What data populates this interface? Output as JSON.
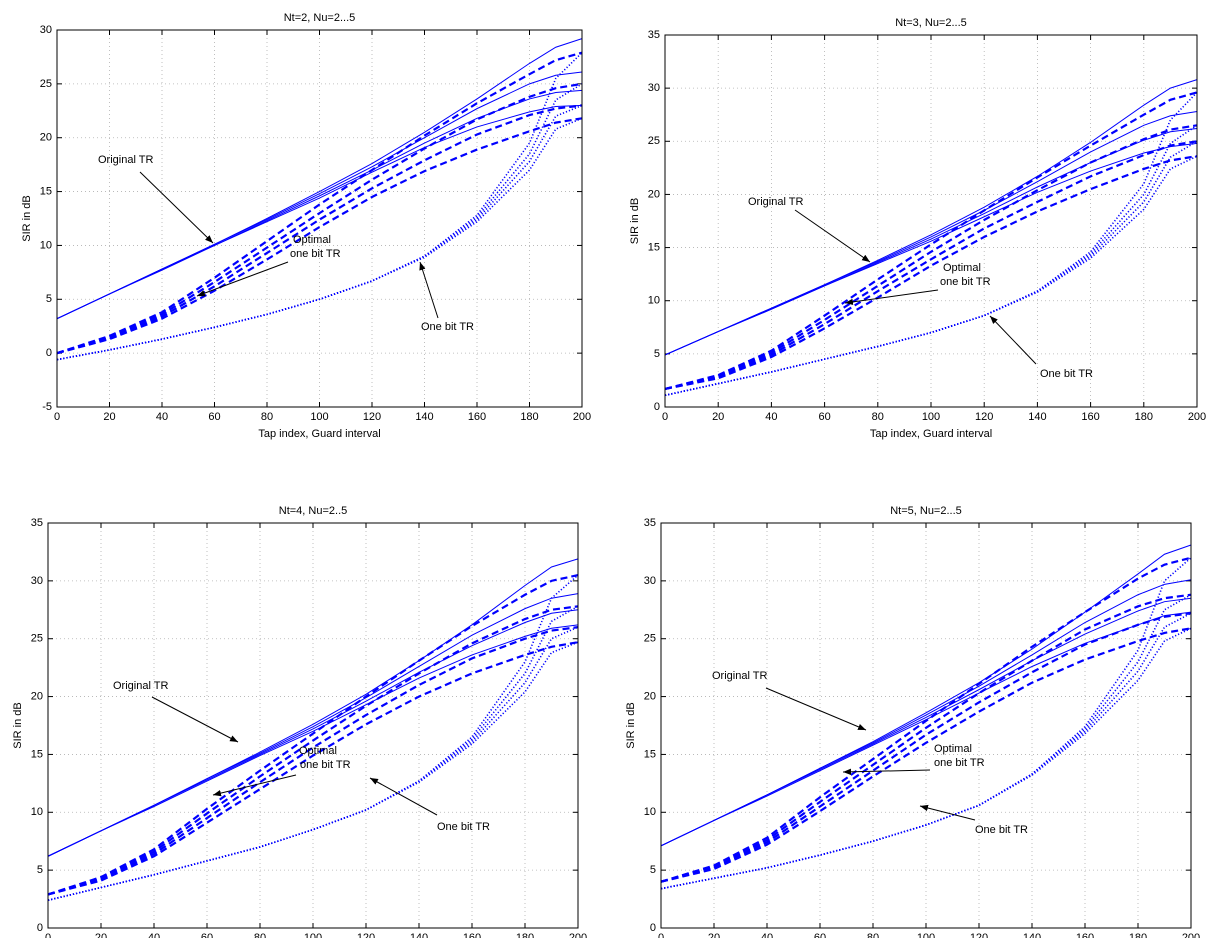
{
  "chart_data": [
    {
      "type": "line",
      "title": "Nt=2, Nu=2...5",
      "xlabel": "Tap index, Guard interval",
      "ylabel": "SIR in dB",
      "xlim": [
        0,
        200
      ],
      "xticks": [
        0,
        20,
        40,
        60,
        80,
        100,
        120,
        140,
        160,
        180,
        200
      ],
      "ylim": [
        -5,
        30
      ],
      "yticks": [
        -5,
        0,
        5,
        10,
        15,
        20,
        25,
        30
      ],
      "grid": true,
      "annotations": [
        "Original TR",
        "Optimal",
        "one bit TR",
        "One bit TR"
      ],
      "x": [
        0,
        20,
        40,
        60,
        80,
        100,
        120,
        140,
        160,
        180,
        190,
        200
      ],
      "series": [
        {
          "color": "#0000ff",
          "linestyle": "solid",
          "values": [
            3.2,
            5.5,
            7.8,
            10.1,
            12.5,
            15.0,
            17.6,
            20.5,
            23.6,
            26.9,
            28.4,
            29.2
          ]
        },
        {
          "color": "#0000ff",
          "linestyle": "solid",
          "values": [
            3.2,
            5.5,
            7.8,
            10.1,
            12.4,
            14.8,
            17.3,
            20.0,
            22.7,
            25.0,
            25.8,
            26.1
          ]
        },
        {
          "color": "#0000ff",
          "linestyle": "solid",
          "values": [
            3.2,
            5.5,
            7.8,
            10.0,
            12.3,
            14.6,
            17.0,
            19.5,
            21.8,
            23.6,
            24.2,
            24.4
          ]
        },
        {
          "color": "#0000ff",
          "linestyle": "solid",
          "values": [
            3.2,
            5.5,
            7.7,
            10.0,
            12.2,
            14.4,
            16.8,
            19.1,
            21.0,
            22.4,
            22.9,
            23.0
          ]
        },
        {
          "color": "#0000ff",
          "linestyle": "dashed",
          "values": [
            0,
            1.6,
            3.8,
            7.0,
            10.4,
            13.8,
            17.0,
            20.2,
            23.2,
            25.9,
            27.2,
            27.9
          ]
        },
        {
          "color": "#0000ff",
          "linestyle": "dashed",
          "values": [
            0,
            1.5,
            3.6,
            6.6,
            9.8,
            13.0,
            16.1,
            19.0,
            21.7,
            23.8,
            24.6,
            25.0
          ]
        },
        {
          "color": "#0000ff",
          "linestyle": "dashed",
          "values": [
            0,
            1.4,
            3.4,
            6.2,
            9.3,
            12.4,
            15.3,
            17.9,
            20.3,
            22.1,
            22.7,
            23.0
          ]
        },
        {
          "color": "#0000ff",
          "linestyle": "dashed",
          "values": [
            0,
            1.3,
            3.2,
            5.8,
            8.7,
            11.7,
            14.5,
            16.9,
            18.9,
            20.6,
            21.4,
            21.8
          ]
        },
        {
          "color": "#0000ff",
          "linestyle": "dotted",
          "values": [
            -0.6,
            0.3,
            1.3,
            2.4,
            3.6,
            5.0,
            6.7,
            9.0,
            12.8,
            19.5,
            25.5,
            27.9
          ]
        },
        {
          "color": "#0000ff",
          "linestyle": "dotted",
          "values": [
            -0.6,
            0.3,
            1.3,
            2.4,
            3.6,
            5.0,
            6.7,
            9.0,
            12.6,
            18.5,
            23.5,
            25.0
          ]
        },
        {
          "color": "#0000ff",
          "linestyle": "dotted",
          "values": [
            -0.6,
            0.3,
            1.3,
            2.4,
            3.6,
            5.0,
            6.7,
            9.0,
            12.4,
            17.8,
            22.0,
            23.0
          ]
        },
        {
          "color": "#0000ff",
          "linestyle": "dotted",
          "values": [
            -0.6,
            0.3,
            1.3,
            2.4,
            3.6,
            5.0,
            6.7,
            8.9,
            12.2,
            17.0,
            20.8,
            21.8
          ]
        }
      ]
    },
    {
      "type": "line",
      "title": "Nt=3, Nu=2...5",
      "xlabel": "Tap index, Guard interval",
      "ylabel": "SIR in dB",
      "xlim": [
        0,
        200
      ],
      "xticks": [
        0,
        20,
        40,
        60,
        80,
        100,
        120,
        140,
        160,
        180,
        200
      ],
      "ylim": [
        0,
        35
      ],
      "yticks": [
        0,
        5,
        10,
        15,
        20,
        25,
        30,
        35
      ],
      "grid": true,
      "annotations": [
        "Original TR",
        "Optimal",
        "one bit TR",
        "One bit TR"
      ],
      "x": [
        0,
        20,
        40,
        60,
        80,
        100,
        120,
        140,
        160,
        180,
        190,
        200
      ],
      "series": [
        {
          "color": "#0000ff",
          "linestyle": "solid",
          "values": [
            4.9,
            7.1,
            9.3,
            11.5,
            13.8,
            16.2,
            18.8,
            21.7,
            24.9,
            28.4,
            30.0,
            30.8
          ]
        },
        {
          "color": "#0000ff",
          "linestyle": "solid",
          "values": [
            4.9,
            7.1,
            9.3,
            11.5,
            13.7,
            16.0,
            18.5,
            21.2,
            24.0,
            26.5,
            27.4,
            27.8
          ]
        },
        {
          "color": "#0000ff",
          "linestyle": "solid",
          "values": [
            4.9,
            7.1,
            9.2,
            11.4,
            13.6,
            15.8,
            18.2,
            20.7,
            23.0,
            25.1,
            25.9,
            26.2
          ]
        },
        {
          "color": "#0000ff",
          "linestyle": "solid",
          "values": [
            4.9,
            7.1,
            9.2,
            11.4,
            13.5,
            15.6,
            17.9,
            20.2,
            22.2,
            23.9,
            24.5,
            24.8
          ]
        },
        {
          "color": "#0000ff",
          "linestyle": "dashed",
          "values": [
            1.7,
            3.0,
            5.3,
            8.6,
            12.0,
            15.3,
            18.5,
            21.6,
            24.6,
            27.5,
            28.9,
            29.6
          ]
        },
        {
          "color": "#0000ff",
          "linestyle": "dashed",
          "values": [
            1.7,
            2.9,
            5.1,
            8.2,
            11.4,
            14.6,
            17.6,
            20.4,
            23.0,
            25.2,
            26.1,
            26.5
          ]
        },
        {
          "color": "#0000ff",
          "linestyle": "dashed",
          "values": [
            1.7,
            2.8,
            4.9,
            7.8,
            10.9,
            13.9,
            16.8,
            19.3,
            21.7,
            23.7,
            24.6,
            25.0
          ]
        },
        {
          "color": "#0000ff",
          "linestyle": "dashed",
          "values": [
            1.7,
            2.7,
            4.7,
            7.4,
            10.3,
            13.3,
            16.0,
            18.4,
            20.5,
            22.4,
            23.2,
            23.6
          ]
        },
        {
          "color": "#0000ff",
          "linestyle": "dotted",
          "values": [
            1.1,
            2.2,
            3.3,
            4.5,
            5.7,
            7.0,
            8.6,
            10.9,
            14.6,
            21.0,
            27.0,
            29.6
          ]
        },
        {
          "color": "#0000ff",
          "linestyle": "dotted",
          "values": [
            1.1,
            2.2,
            3.3,
            4.5,
            5.7,
            7.0,
            8.6,
            10.9,
            14.4,
            20.0,
            24.8,
            26.5
          ]
        },
        {
          "color": "#0000ff",
          "linestyle": "dotted",
          "values": [
            1.1,
            2.2,
            3.3,
            4.5,
            5.7,
            7.0,
            8.6,
            10.9,
            14.2,
            19.3,
            23.5,
            25.0
          ]
        },
        {
          "color": "#0000ff",
          "linestyle": "dotted",
          "values": [
            1.1,
            2.2,
            3.3,
            4.5,
            5.7,
            7.0,
            8.6,
            10.8,
            14.0,
            18.6,
            22.4,
            23.6
          ]
        }
      ]
    },
    {
      "type": "line",
      "title": "Nt=4, Nu=2..5",
      "xlabel": "Tap index, Guard interval",
      "ylabel": "SIR in dB",
      "xlim": [
        0,
        200
      ],
      "xticks": [
        0,
        20,
        40,
        60,
        80,
        100,
        120,
        140,
        160,
        180,
        200
      ],
      "ylim": [
        0,
        35
      ],
      "yticks": [
        0,
        5,
        10,
        15,
        20,
        25,
        30,
        35
      ],
      "grid": true,
      "annotations": [
        "Original TR",
        "Optimal",
        "one bit TR",
        "One bit TR"
      ],
      "x": [
        0,
        20,
        40,
        60,
        80,
        100,
        120,
        140,
        160,
        180,
        190,
        200
      ],
      "series": [
        {
          "color": "#0000ff",
          "linestyle": "solid",
          "values": [
            6.2,
            8.4,
            10.6,
            12.9,
            15.2,
            17.6,
            20.2,
            23.1,
            26.2,
            29.6,
            31.2,
            31.9
          ]
        },
        {
          "color": "#0000ff",
          "linestyle": "solid",
          "values": [
            6.2,
            8.4,
            10.6,
            12.9,
            15.1,
            17.4,
            19.9,
            22.6,
            25.3,
            27.6,
            28.5,
            28.9
          ]
        },
        {
          "color": "#0000ff",
          "linestyle": "solid",
          "values": [
            6.2,
            8.4,
            10.6,
            12.8,
            15.0,
            17.2,
            19.6,
            22.1,
            24.4,
            26.4,
            27.2,
            27.5
          ]
        },
        {
          "color": "#0000ff",
          "linestyle": "solid",
          "values": [
            6.2,
            8.4,
            10.5,
            12.7,
            14.9,
            17.0,
            19.3,
            21.6,
            23.6,
            25.2,
            25.9,
            26.2
          ]
        },
        {
          "color": "#0000ff",
          "linestyle": "dashed",
          "values": [
            2.9,
            4.4,
            6.8,
            10.3,
            13.6,
            16.8,
            20.0,
            23.1,
            26.1,
            28.8,
            30.0,
            30.5
          ]
        },
        {
          "color": "#0000ff",
          "linestyle": "dashed",
          "values": [
            2.9,
            4.3,
            6.6,
            9.9,
            13.1,
            16.2,
            19.2,
            22.0,
            24.6,
            26.7,
            27.5,
            27.8
          ]
        },
        {
          "color": "#0000ff",
          "linestyle": "dashed",
          "values": [
            2.9,
            4.2,
            6.4,
            9.5,
            12.6,
            15.6,
            18.4,
            21.0,
            23.3,
            25.0,
            25.7,
            26.0
          ]
        },
        {
          "color": "#0000ff",
          "linestyle": "dashed",
          "values": [
            2.9,
            4.1,
            6.2,
            9.1,
            12.0,
            14.9,
            17.6,
            20.0,
            22.0,
            23.6,
            24.3,
            24.7
          ]
        },
        {
          "color": "#0000ff",
          "linestyle": "dotted",
          "values": [
            2.4,
            3.5,
            4.6,
            5.8,
            7.0,
            8.5,
            10.2,
            12.7,
            16.5,
            23.0,
            28.5,
            30.5
          ]
        },
        {
          "color": "#0000ff",
          "linestyle": "dotted",
          "values": [
            2.4,
            3.5,
            4.6,
            5.8,
            7.0,
            8.5,
            10.2,
            12.7,
            16.3,
            22.0,
            26.5,
            27.8
          ]
        },
        {
          "color": "#0000ff",
          "linestyle": "dotted",
          "values": [
            2.4,
            3.5,
            4.6,
            5.8,
            7.0,
            8.5,
            10.2,
            12.7,
            16.1,
            21.2,
            25.0,
            26.0
          ]
        },
        {
          "color": "#0000ff",
          "linestyle": "dotted",
          "values": [
            2.4,
            3.5,
            4.6,
            5.8,
            7.0,
            8.5,
            10.2,
            12.6,
            15.9,
            20.4,
            23.8,
            24.7
          ]
        }
      ]
    },
    {
      "type": "line",
      "title": "Nt=5, Nu=2...5",
      "xlabel": "Tap index, Guard interval",
      "ylabel": "SIR in dB",
      "xlim": [
        0,
        200
      ],
      "xticks": [
        0,
        20,
        40,
        60,
        80,
        100,
        120,
        140,
        160,
        180,
        200
      ],
      "ylim": [
        0,
        35
      ],
      "yticks": [
        0,
        5,
        10,
        15,
        20,
        25,
        30,
        35
      ],
      "grid": true,
      "annotations": [
        "Original TR",
        "Optimal",
        "one bit TR",
        "One bit TR"
      ],
      "x": [
        0,
        20,
        40,
        60,
        80,
        100,
        120,
        140,
        160,
        180,
        190,
        200
      ],
      "series": [
        {
          "color": "#0000ff",
          "linestyle": "solid",
          "values": [
            7.1,
            9.3,
            11.5,
            13.8,
            16.1,
            18.6,
            21.2,
            24.1,
            27.3,
            30.6,
            32.3,
            33.1
          ]
        },
        {
          "color": "#0000ff",
          "linestyle": "solid",
          "values": [
            7.1,
            9.3,
            11.5,
            13.8,
            16.0,
            18.4,
            20.9,
            23.6,
            26.4,
            28.8,
            29.7,
            30.1
          ]
        },
        {
          "color": "#0000ff",
          "linestyle": "solid",
          "values": [
            7.1,
            9.3,
            11.5,
            13.7,
            15.9,
            18.2,
            20.6,
            23.1,
            25.4,
            27.4,
            28.2,
            28.5
          ]
        },
        {
          "color": "#0000ff",
          "linestyle": "solid",
          "values": [
            7.1,
            9.3,
            11.4,
            13.6,
            15.8,
            18.0,
            20.3,
            22.6,
            24.6,
            26.2,
            27.0,
            27.3
          ]
        },
        {
          "color": "#0000ff",
          "linestyle": "dashed",
          "values": [
            4.0,
            5.4,
            7.8,
            11.3,
            14.6,
            17.9,
            21.1,
            24.3,
            27.3,
            30.2,
            31.4,
            32.0
          ]
        },
        {
          "color": "#0000ff",
          "linestyle": "dashed",
          "values": [
            4.0,
            5.3,
            7.6,
            10.9,
            14.1,
            17.3,
            20.3,
            23.1,
            25.8,
            27.8,
            28.5,
            28.8
          ]
        },
        {
          "color": "#0000ff",
          "linestyle": "dashed",
          "values": [
            4.0,
            5.2,
            7.4,
            10.5,
            13.6,
            16.7,
            19.5,
            22.1,
            24.5,
            26.2,
            26.9,
            27.2
          ]
        },
        {
          "color": "#0000ff",
          "linestyle": "dashed",
          "values": [
            4.0,
            5.1,
            7.2,
            10.1,
            13.1,
            16.0,
            18.7,
            21.2,
            23.2,
            24.8,
            25.5,
            25.9
          ]
        },
        {
          "color": "#0000ff",
          "linestyle": "dotted",
          "values": [
            3.4,
            4.3,
            5.2,
            6.3,
            7.5,
            8.9,
            10.6,
            13.3,
            17.4,
            24.0,
            30.0,
            32.0
          ]
        },
        {
          "color": "#0000ff",
          "linestyle": "dotted",
          "values": [
            3.4,
            4.3,
            5.2,
            6.3,
            7.5,
            8.9,
            10.6,
            13.3,
            17.2,
            23.0,
            27.5,
            28.8
          ]
        },
        {
          "color": "#0000ff",
          "linestyle": "dotted",
          "values": [
            3.4,
            4.3,
            5.2,
            6.3,
            7.5,
            8.9,
            10.6,
            13.3,
            17.0,
            22.2,
            26.0,
            27.2
          ]
        },
        {
          "color": "#0000ff",
          "linestyle": "dotted",
          "values": [
            3.4,
            4.3,
            5.2,
            6.3,
            7.5,
            8.9,
            10.6,
            13.2,
            16.8,
            21.4,
            24.8,
            25.9
          ]
        }
      ]
    }
  ]
}
